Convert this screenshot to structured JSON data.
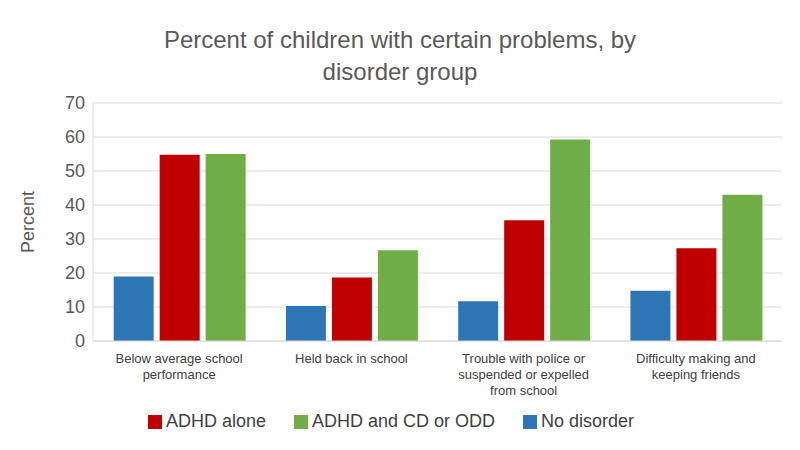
{
  "chart_data": {
    "type": "bar",
    "title": "Percent of children with certain problems, by disorder group",
    "categories": [
      "Below average school performance",
      "Held back in school",
      "Trouble with police or suspended or expelled from school",
      "Difficulty making and keeping friends"
    ],
    "series": [
      {
        "name": "No disorder",
        "color": "#2e75b6",
        "values": [
          19,
          10.3,
          11.7,
          14.8
        ]
      },
      {
        "name": "ADHD alone",
        "color": "#c00000",
        "values": [
          54.8,
          18.7,
          35.5,
          27.3
        ]
      },
      {
        "name": "ADHD and CD or ODD",
        "color": "#70ad47",
        "values": [
          55,
          26.7,
          59.3,
          43
        ]
      }
    ],
    "y_label": "Percent",
    "ylim": [
      0,
      70
    ],
    "yticks": [
      0,
      10,
      20,
      30,
      40,
      50,
      60,
      70
    ],
    "grid": true,
    "legend": "bottom"
  }
}
